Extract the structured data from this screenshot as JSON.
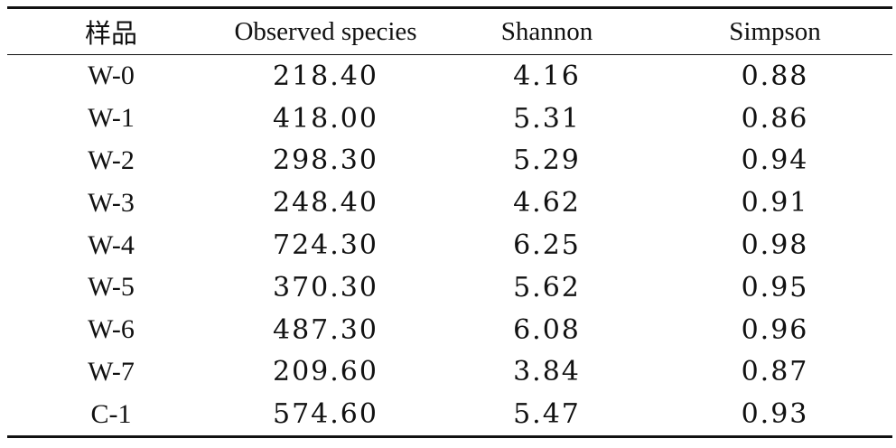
{
  "table": {
    "headers": [
      "样品",
      "Observed species",
      "Shannon",
      "Simpson"
    ],
    "rows": [
      [
        "W-0",
        "218.40",
        "4.16",
        "0.88"
      ],
      [
        "W-1",
        "418.00",
        "5.31",
        "0.86"
      ],
      [
        "W-2",
        "298.30",
        "5.29",
        "0.94"
      ],
      [
        "W-3",
        "248.40",
        "4.62",
        "0.91"
      ],
      [
        "W-4",
        "724.30",
        "6.25",
        "0.98"
      ],
      [
        "W-5",
        "370.30",
        "5.62",
        "0.95"
      ],
      [
        "W-6",
        "487.30",
        "6.08",
        "0.96"
      ],
      [
        "W-7",
        "209.60",
        "3.84",
        "0.87"
      ],
      [
        "C-1",
        "574.60",
        "5.47",
        "0.93"
      ]
    ]
  }
}
